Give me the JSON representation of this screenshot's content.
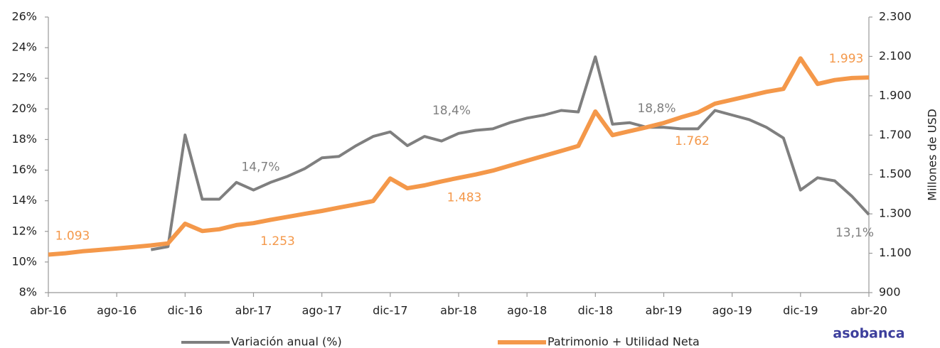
{
  "chart_data": {
    "type": "line",
    "categories": [
      "abr-16",
      null,
      null,
      null,
      "ago-16",
      null,
      null,
      null,
      "dic-16",
      null,
      null,
      null,
      "abr-17",
      null,
      null,
      null,
      "ago-17",
      null,
      null,
      null,
      "dic-17",
      null,
      null,
      null,
      "abr-18",
      null,
      null,
      null,
      "ago-18",
      null,
      null,
      null,
      "dic-18",
      null,
      null,
      null,
      "abr-19",
      null,
      null,
      null,
      "ago-19",
      null,
      null,
      null,
      "dic-19",
      null,
      null,
      null,
      "abr-20"
    ],
    "series": [
      {
        "name": "Variación anual (%)",
        "color": "#7f7f7f",
        "values": [
          null,
          null,
          null,
          null,
          null,
          null,
          10.8,
          11.0,
          18.3,
          14.1,
          14.1,
          15.2,
          14.7,
          15.2,
          15.6,
          16.1,
          16.8,
          16.9,
          17.6,
          18.2,
          18.5,
          17.6,
          18.2,
          17.9,
          18.4,
          18.6,
          18.7,
          19.1,
          19.4,
          19.6,
          19.9,
          19.8,
          23.4,
          19.0,
          19.1,
          18.8,
          18.8,
          18.7,
          18.7,
          19.9,
          19.6,
          19.3,
          18.8,
          18.1,
          14.7,
          15.5,
          15.3,
          14.3,
          13.1
        ],
        "value_labels": [
          null,
          null,
          null,
          null,
          null,
          null,
          null,
          null,
          null,
          null,
          null,
          null,
          "14,7%",
          null,
          null,
          null,
          null,
          null,
          null,
          null,
          null,
          null,
          null,
          null,
          "18,4%",
          null,
          null,
          null,
          null,
          null,
          null,
          null,
          null,
          null,
          null,
          null,
          "18,8%",
          null,
          null,
          null,
          null,
          null,
          null,
          null,
          null,
          null,
          null,
          null,
          "13,1%"
        ]
      },
      {
        "name": "Patrimonio + Utilidad Neta",
        "color": "#f4984a",
        "axis": "y2",
        "values": [
          1093,
          1100,
          1110,
          1117,
          1124,
          1132,
          1140,
          1150,
          1250,
          1213,
          1222,
          1243,
          1253,
          1270,
          1285,
          1300,
          1315,
          1332,
          1348,
          1365,
          1480,
          1430,
          1445,
          1465,
          1483,
          1500,
          1520,
          1545,
          1570,
          1595,
          1620,
          1645,
          1820,
          1700,
          1720,
          1740,
          1762,
          1790,
          1815,
          1860,
          1880,
          1900,
          1920,
          1935,
          2090,
          1960,
          1980,
          1990,
          1993
        ],
        "value_labels": [
          "1.093",
          null,
          null,
          null,
          null,
          null,
          null,
          null,
          null,
          null,
          null,
          null,
          "1.253",
          null,
          null,
          null,
          null,
          null,
          null,
          null,
          null,
          null,
          null,
          null,
          "1.483",
          null,
          null,
          null,
          null,
          null,
          null,
          null,
          null,
          null,
          null,
          null,
          "1.762",
          null,
          null,
          null,
          null,
          null,
          null,
          null,
          null,
          null,
          null,
          null,
          "1.993"
        ]
      }
    ],
    "ylim": [
      8,
      26
    ],
    "yticks": [
      {
        "value": 8,
        "label": "8%"
      },
      {
        "value": 10,
        "label": "10%"
      },
      {
        "value": 12,
        "label": "12%"
      },
      {
        "value": 14,
        "label": "14%"
      },
      {
        "value": 16,
        "label": "16%"
      },
      {
        "value": 18,
        "label": "18%"
      },
      {
        "value": 20,
        "label": "20%"
      },
      {
        "value": 22,
        "label": "22%"
      },
      {
        "value": 24,
        "label": "24%"
      },
      {
        "value": 26,
        "label": "26%"
      }
    ],
    "y2lim": [
      900,
      2300
    ],
    "y2ticks": [
      900,
      {
        "value": 1100,
        "label": "1.100"
      },
      {
        "value": 1300,
        "label": "1.300"
      },
      {
        "value": 1500,
        "label": "1.500"
      },
      {
        "value": 1700,
        "label": "1.700"
      },
      {
        "value": 1900,
        "label": "1.900"
      },
      {
        "value": 2100,
        "label": "2.100"
      },
      {
        "value": 2300,
        "label": "2.300"
      }
    ],
    "y2label": "Millones de USD",
    "logo": "asobanca",
    "grid": false,
    "legend": "bottom"
  }
}
